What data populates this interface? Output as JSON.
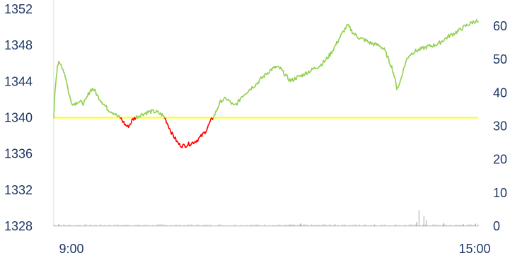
{
  "chart_data": {
    "type": "line",
    "title": "",
    "xlabel": "",
    "ylabel": "",
    "x_ticks": [
      "9:00",
      "15:00"
    ],
    "y_left": {
      "ticks": [
        1328,
        1332,
        1336,
        1340,
        1344,
        1348,
        1352
      ],
      "range": [
        1328,
        1352
      ]
    },
    "y_right": {
      "ticks": [
        0,
        10,
        20,
        30,
        40,
        50,
        60
      ],
      "range": [
        0,
        65
      ]
    },
    "reference_line": {
      "value": 1340,
      "color": "#ffff00"
    },
    "colors": {
      "above": "#92d050",
      "below": "#ff0000",
      "volume": "#a6a6a6",
      "axis_text": "#1f3864"
    },
    "series": [
      {
        "axis": "left",
        "points": [
          [
            0,
            1340.0
          ],
          [
            0.5,
            1343
          ],
          [
            1,
            1344.5
          ],
          [
            1.5,
            1345.8
          ],
          [
            2,
            1346.0
          ],
          [
            3,
            1345.8
          ],
          [
            4,
            1345.2
          ],
          [
            5,
            1344.3
          ],
          [
            6,
            1342.8
          ],
          [
            7,
            1341.8
          ],
          [
            8,
            1341.5
          ],
          [
            10,
            1341.8
          ],
          [
            12,
            1341.6
          ],
          [
            13,
            1341.9
          ],
          [
            14,
            1342.6
          ],
          [
            15,
            1343.1
          ],
          [
            16,
            1343.2
          ],
          [
            17,
            1342.8
          ],
          [
            18,
            1342.3
          ],
          [
            20,
            1341.6
          ],
          [
            22,
            1340.9
          ],
          [
            24,
            1340.6
          ],
          [
            25,
            1340.4
          ],
          [
            26,
            1340.1
          ],
          [
            27,
            1340.0
          ],
          [
            28,
            1339.6
          ],
          [
            29,
            1339.2
          ],
          [
            30,
            1339.0
          ],
          [
            31,
            1339.3
          ],
          [
            32,
            1339.8
          ],
          [
            33,
            1340.0
          ],
          [
            35,
            1340.3
          ],
          [
            38,
            1340.6
          ],
          [
            40,
            1340.7
          ],
          [
            42,
            1340.6
          ],
          [
            44,
            1340.3
          ],
          [
            45,
            1340.0
          ],
          [
            46,
            1339.4
          ],
          [
            47,
            1338.8
          ],
          [
            48,
            1338.2
          ],
          [
            49,
            1337.8
          ],
          [
            50,
            1337.3
          ],
          [
            51,
            1337.0
          ],
          [
            52,
            1336.9
          ],
          [
            53,
            1336.9
          ],
          [
            54,
            1337.0
          ],
          [
            56,
            1337.2
          ],
          [
            58,
            1337.5
          ],
          [
            60,
            1338.0
          ],
          [
            62,
            1338.7
          ],
          [
            63,
            1339.3
          ],
          [
            64,
            1339.8
          ],
          [
            65,
            1340.2
          ],
          [
            66,
            1340.8
          ],
          [
            67,
            1341.5
          ],
          [
            68,
            1341.9
          ],
          [
            70,
            1342.1
          ],
          [
            72,
            1341.6
          ],
          [
            73,
            1341.3
          ],
          [
            74,
            1341.5
          ],
          [
            75,
            1341.8
          ],
          [
            76,
            1342.3
          ],
          [
            78,
            1342.8
          ],
          [
            80,
            1343.3
          ],
          [
            82,
            1343.7
          ],
          [
            84,
            1344.3
          ],
          [
            86,
            1344.8
          ],
          [
            88,
            1345.3
          ],
          [
            90,
            1345.6
          ],
          [
            92,
            1345.4
          ],
          [
            93,
            1345.0
          ],
          [
            94,
            1344.7
          ],
          [
            95,
            1344.3
          ],
          [
            96,
            1344.1
          ],
          [
            97,
            1344.2
          ],
          [
            98,
            1344.4
          ],
          [
            100,
            1344.6
          ],
          [
            102,
            1344.9
          ],
          [
            104,
            1345.2
          ],
          [
            106,
            1345.5
          ],
          [
            108,
            1345.8
          ],
          [
            110,
            1346.3
          ],
          [
            112,
            1347.0
          ],
          [
            114,
            1347.9
          ],
          [
            116,
            1348.9
          ],
          [
            118,
            1349.8
          ],
          [
            119,
            1350.2
          ],
          [
            120,
            1349.9
          ],
          [
            121,
            1349.5
          ],
          [
            122,
            1349.2
          ],
          [
            124,
            1348.8
          ],
          [
            126,
            1348.6
          ],
          [
            128,
            1348.3
          ],
          [
            130,
            1348.1
          ],
          [
            132,
            1348.0
          ],
          [
            134,
            1347.5
          ],
          [
            135,
            1346.9
          ],
          [
            136,
            1346.2
          ],
          [
            137,
            1345.6
          ],
          [
            138,
            1344.6
          ],
          [
            139,
            1343.3
          ],
          [
            140,
            1343.6
          ],
          [
            141,
            1344.6
          ],
          [
            142,
            1345.6
          ],
          [
            143,
            1346.4
          ],
          [
            144,
            1346.9
          ],
          [
            146,
            1347.3
          ],
          [
            148,
            1347.5
          ],
          [
            150,
            1347.7
          ],
          [
            152,
            1347.9
          ],
          [
            154,
            1348.0
          ],
          [
            156,
            1348.2
          ],
          [
            158,
            1348.6
          ],
          [
            160,
            1349.0
          ],
          [
            162,
            1349.3
          ],
          [
            164,
            1349.6
          ],
          [
            166,
            1350.0
          ],
          [
            168,
            1350.3
          ],
          [
            170,
            1350.6
          ],
          [
            171,
            1350.7
          ],
          [
            172,
            1350.6
          ]
        ]
      }
    ],
    "volume_spikes": [
      [
        2,
        0.6
      ],
      [
        10,
        0.3
      ],
      [
        30,
        0.4
      ],
      [
        60,
        0.3
      ],
      [
        67,
        0.4
      ],
      [
        86,
        0.3
      ],
      [
        96,
        0.5
      ],
      [
        100,
        0.9
      ],
      [
        110,
        0.6
      ],
      [
        114,
        0.7
      ],
      [
        118,
        0.5
      ],
      [
        130,
        0.5
      ],
      [
        147,
        1.3
      ],
      [
        148,
        4.8
      ],
      [
        150,
        3.0
      ],
      [
        151,
        1.8
      ],
      [
        158,
        1.0
      ],
      [
        166,
        0.6
      ],
      [
        171,
        0.8
      ]
    ]
  }
}
